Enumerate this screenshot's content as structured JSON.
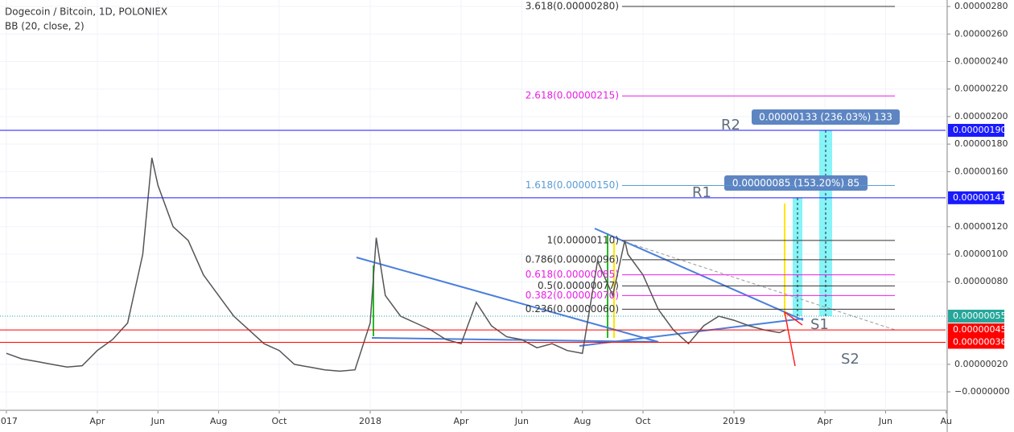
{
  "chart_data": {
    "type": "line",
    "title": "Dogecoin / Bitcoin, 1D, POLONIEX",
    "subtitle": "BB (20, close, 2)",
    "x": [
      0,
      0.5,
      1,
      1.5,
      2,
      2.5,
      3,
      3.5,
      4,
      4.5,
      4.8,
      5,
      5.5,
      6,
      6.5,
      7,
      7.5,
      8,
      8.5,
      9,
      9.5,
      10,
      10.5,
      11,
      11.5,
      12,
      12.2,
      12.5,
      13,
      13.5,
      14,
      14.5,
      15,
      15.5,
      16,
      16.5,
      17,
      17.5,
      18,
      18.5,
      19,
      19.5,
      20,
      20.4,
      20.5,
      21,
      21.5,
      22,
      22.5,
      23,
      23.5,
      24,
      24.5,
      25,
      25.5,
      25.7
    ],
    "series": [
      {
        "name": "DOGE/BTC",
        "color": "#555555",
        "values": [
          2.8e-07,
          2.4e-07,
          2.2e-07,
          2e-07,
          1.8e-07,
          1.9e-07,
          3e-07,
          3.8e-07,
          5e-07,
          1e-06,
          1.7e-06,
          1.5e-06,
          1.2e-06,
          1.1e-06,
          8.5e-07,
          7e-07,
          5.5e-07,
          4.5e-07,
          3.5e-07,
          3e-07,
          2e-07,
          1.8e-07,
          1.6e-07,
          1.5e-07,
          1.6e-07,
          5e-07,
          1.12e-06,
          7e-07,
          5.5e-07,
          5e-07,
          4.5e-07,
          3.8e-07,
          3.5e-07,
          6.5e-07,
          4.8e-07,
          4e-07,
          3.8e-07,
          3.2e-07,
          3.5e-07,
          3e-07,
          2.8e-07,
          9.5e-07,
          7e-07,
          1.1e-06,
          1e-06,
          8.5e-07,
          6e-07,
          4.5e-07,
          3.5e-07,
          4.8e-07,
          5.5e-07,
          5.2e-07,
          4.8e-07,
          4.5e-07,
          4.3e-07,
          4.5e-07
        ]
      }
    ],
    "xlim": [
      -0.21,
      30.98
    ],
    "xticks": [
      {
        "value": 0,
        "label": "2017"
      },
      {
        "value": 3,
        "label": "Apr"
      },
      {
        "value": 5,
        "label": "Jun"
      },
      {
        "value": 7,
        "label": "Aug"
      },
      {
        "value": 9,
        "label": "Oct"
      },
      {
        "value": 12,
        "label": "2018"
      },
      {
        "value": 15,
        "label": "Apr"
      },
      {
        "value": 17,
        "label": "Jun"
      },
      {
        "value": 19,
        "label": "Aug"
      },
      {
        "value": 21,
        "label": "Oct"
      },
      {
        "value": 24,
        "label": "2019"
      },
      {
        "value": 27,
        "label": "Apr"
      },
      {
        "value": 29,
        "label": "Jun"
      },
      {
        "value": 31,
        "label": "Au"
      }
    ],
    "ylim": [
      -1.34e-07,
      2.847e-06
    ],
    "yticks": [
      {
        "value": 2.8e-06,
        "label": "0.00000280"
      },
      {
        "value": 2.6e-06,
        "label": "0.00000260"
      },
      {
        "value": 2.4e-06,
        "label": "0.00000240"
      },
      {
        "value": 2.2e-06,
        "label": "0.00000220"
      },
      {
        "value": 2e-06,
        "label": "0.00000200"
      },
      {
        "value": 1.8e-06,
        "label": "0.00000180"
      },
      {
        "value": 1.6e-06,
        "label": "0.00000160"
      },
      {
        "value": 1.2e-06,
        "label": "0.00000120"
      },
      {
        "value": 1e-06,
        "label": "0.00000100"
      },
      {
        "value": 8e-07,
        "label": "0.00000080"
      },
      {
        "value": 2e-07,
        "label": "0.00000020"
      },
      {
        "value": 0,
        "label": "−0.0000000"
      }
    ],
    "levels": [
      {
        "value": 1.9e-06,
        "label": "0.00000190",
        "color": "#1a1aff"
      },
      {
        "value": 1.41e-06,
        "label": "0.00000141",
        "color": "#1a1aff"
      },
      {
        "value": 5.5e-07,
        "label": "0.00000055",
        "color": "#26a69a"
      },
      {
        "value": 4.5e-07,
        "label": "0.00000045",
        "color": "#ff0000"
      },
      {
        "value": 3.6e-07,
        "label": "0.00000036",
        "color": "#ff0000"
      }
    ],
    "fib_levels": [
      {
        "label": "3.618(0.00000280)",
        "value": 2.8e-06,
        "color": "#333333"
      },
      {
        "label": "2.618(0.00000215)",
        "value": 2.15e-06,
        "color": "#e91ee6"
      },
      {
        "label": "1.618(0.00000150)",
        "value": 1.5e-06,
        "color": "#5b9bd5"
      },
      {
        "label": "1(0.00000110)",
        "value": 1.1e-06,
        "color": "#333333"
      },
      {
        "label": "0.786(0.00000096)",
        "value": 9.6e-07,
        "color": "#333333"
      },
      {
        "label": "0.618(0.00000085)",
        "value": 8.5e-07,
        "color": "#e91ee6"
      },
      {
        "label": "0.5(0.00000077)",
        "value": 7.7e-07,
        "color": "#333333"
      },
      {
        "label": "0.382(0.00000070)",
        "value": 7e-07,
        "color": "#e91ee6"
      },
      {
        "label": "0.236(0.00000060)",
        "value": 6e-07,
        "color": "#333333"
      }
    ],
    "annotations": {
      "r2": "R2",
      "r1": "R1",
      "s1": "S1",
      "s2": "S2",
      "measure_r2": "0.00000133 (236.03%) 133",
      "measure_r1": "0.00000085 (153.20%) 85"
    }
  }
}
